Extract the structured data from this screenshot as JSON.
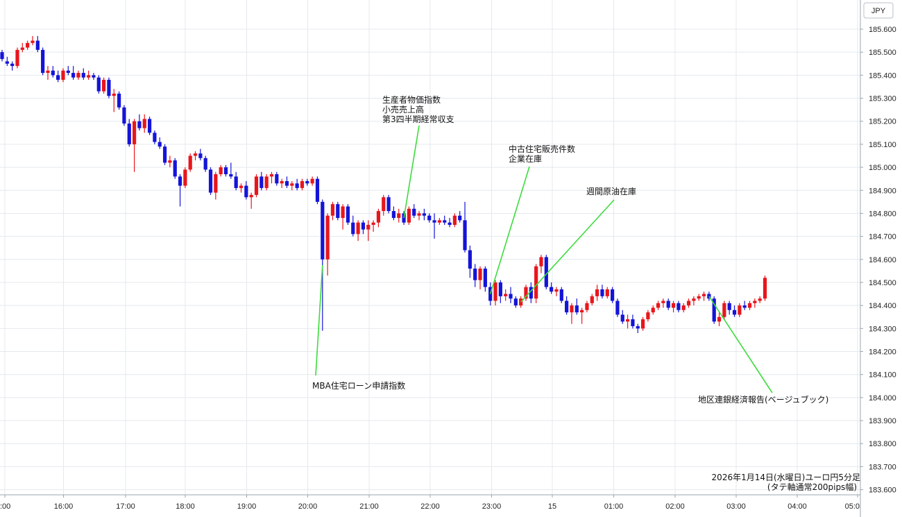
{
  "chart_data": {
    "type": "candlestick",
    "currency_label": "JPY",
    "caption": [
      "2026年1月14日(水曜日)ユーロ円5分足",
      "(タテ軸通常200pips幅)"
    ],
    "x_tick_labels": [
      ":00",
      "16:00",
      "17:00",
      "18:00",
      "19:00",
      "20:00",
      "21:00",
      "22:00",
      "23:00",
      "15",
      "01:00",
      "02:00",
      "03:00",
      "04:00",
      "05:0"
    ],
    "y_tick_labels": [
      "185.600",
      "185.500",
      "185.400",
      "185.300",
      "185.200",
      "185.100",
      "185.000",
      "184.900",
      "184.800",
      "184.700",
      "184.600",
      "184.500",
      "184.400",
      "184.300",
      "184.200",
      "184.100",
      "184.000",
      "183.900",
      "183.800",
      "183.700",
      "183.600"
    ],
    "y_range": [
      183.58,
      185.68
    ],
    "grid": true,
    "colors": {
      "up": "#e8161c",
      "down": "#1414d8",
      "grid": "#e4e9ee",
      "annotation_line": "#3cdc3c",
      "text": "#111111"
    },
    "annotations": [
      {
        "lines": [
          "MBA住宅ローン申請指数"
        ],
        "bar": 63
      },
      {
        "lines": [
          "生産者物価指数",
          "小売売上高",
          "第3四半期経常収支"
        ],
        "bar": 79
      },
      {
        "lines": [
          "中古住宅販売件数",
          "企業在庫"
        ],
        "bar": 96
      },
      {
        "lines": [
          "週間原油在庫"
        ],
        "bar": 102
      },
      {
        "lines": [
          "地区連銀経済報告(ベージュブック)"
        ],
        "bar": 139
      }
    ],
    "ohlc": [
      [
        185.5,
        185.51,
        185.46,
        185.47
      ],
      [
        185.46,
        185.48,
        185.44,
        185.45
      ],
      [
        185.45,
        185.46,
        185.42,
        185.44
      ],
      [
        185.44,
        185.52,
        185.43,
        185.51
      ],
      [
        185.51,
        185.54,
        185.5,
        185.52
      ],
      [
        185.52,
        185.55,
        185.51,
        185.54
      ],
      [
        185.54,
        185.57,
        185.53,
        185.55
      ],
      [
        185.55,
        185.57,
        185.5,
        185.51
      ],
      [
        185.51,
        185.52,
        185.4,
        185.41
      ],
      [
        185.41,
        185.44,
        185.38,
        185.42
      ],
      [
        185.42,
        185.44,
        185.39,
        185.4
      ],
      [
        185.4,
        185.42,
        185.37,
        185.38
      ],
      [
        185.38,
        185.43,
        185.37,
        185.42
      ],
      [
        185.42,
        185.44,
        185.4,
        185.41
      ],
      [
        185.41,
        185.44,
        185.38,
        185.39
      ],
      [
        185.39,
        185.42,
        185.38,
        185.41
      ],
      [
        185.41,
        185.43,
        185.38,
        185.39
      ],
      [
        185.39,
        185.42,
        185.38,
        185.4
      ],
      [
        185.4,
        185.41,
        185.38,
        185.39
      ],
      [
        185.39,
        185.4,
        185.32,
        185.33
      ],
      [
        185.33,
        185.39,
        185.32,
        185.38
      ],
      [
        185.38,
        185.39,
        185.3,
        185.31
      ],
      [
        185.31,
        185.34,
        185.24,
        185.32
      ],
      [
        185.32,
        185.33,
        185.25,
        185.26
      ],
      [
        185.26,
        185.27,
        185.18,
        185.19
      ],
      [
        185.19,
        185.21,
        185.09,
        185.1
      ],
      [
        185.1,
        185.21,
        184.98,
        185.2
      ],
      [
        185.2,
        185.23,
        185.16,
        185.17
      ],
      [
        185.17,
        185.23,
        185.15,
        185.21
      ],
      [
        185.21,
        185.22,
        185.14,
        185.15
      ],
      [
        185.15,
        185.16,
        185.1,
        185.11
      ],
      [
        185.11,
        185.13,
        185.08,
        185.09
      ],
      [
        185.09,
        185.1,
        185.01,
        185.02
      ],
      [
        185.02,
        185.05,
        185.0,
        185.03
      ],
      [
        185.03,
        185.04,
        184.95,
        184.96
      ],
      [
        184.96,
        184.97,
        184.83,
        184.92
      ],
      [
        184.92,
        185.0,
        184.91,
        184.99
      ],
      [
        184.99,
        185.06,
        184.98,
        185.05
      ],
      [
        185.05,
        185.07,
        185.03,
        185.06
      ],
      [
        185.06,
        185.08,
        185.03,
        185.04
      ],
      [
        185.04,
        185.05,
        184.98,
        184.99
      ],
      [
        184.99,
        185.0,
        184.88,
        184.89
      ],
      [
        184.89,
        184.98,
        184.86,
        184.97
      ],
      [
        184.97,
        185.01,
        184.96,
        185.0
      ],
      [
        185.0,
        185.01,
        184.96,
        184.97
      ],
      [
        184.97,
        185.02,
        184.95,
        184.96
      ],
      [
        184.96,
        184.98,
        184.9,
        184.91
      ],
      [
        184.91,
        184.93,
        184.89,
        184.92
      ],
      [
        184.92,
        184.94,
        184.86,
        184.87
      ],
      [
        184.87,
        184.89,
        184.82,
        184.88
      ],
      [
        184.88,
        184.97,
        184.87,
        184.96
      ],
      [
        184.96,
        184.98,
        184.9,
        184.91
      ],
      [
        184.91,
        184.97,
        184.9,
        184.96
      ],
      [
        184.96,
        184.98,
        184.93,
        184.97
      ],
      [
        184.97,
        184.98,
        184.92,
        184.93
      ],
      [
        184.93,
        184.95,
        184.91,
        184.94
      ],
      [
        184.94,
        184.96,
        184.91,
        184.92
      ],
      [
        184.92,
        184.94,
        184.9,
        184.93
      ],
      [
        184.93,
        184.95,
        184.9,
        184.91
      ],
      [
        184.91,
        184.95,
        184.9,
        184.94
      ],
      [
        184.94,
        184.95,
        184.92,
        184.93
      ],
      [
        184.93,
        184.96,
        184.92,
        184.95
      ],
      [
        184.95,
        184.96,
        184.84,
        184.85
      ],
      [
        184.85,
        184.86,
        184.29,
        184.6
      ],
      [
        184.6,
        184.8,
        184.53,
        184.79
      ],
      [
        184.79,
        184.85,
        184.77,
        184.84
      ],
      [
        184.84,
        184.85,
        184.77,
        184.78
      ],
      [
        184.78,
        184.84,
        184.73,
        184.83
      ],
      [
        184.83,
        184.84,
        184.75,
        184.76
      ],
      [
        184.76,
        184.79,
        184.7,
        184.71
      ],
      [
        184.71,
        184.77,
        184.68,
        184.76
      ],
      [
        184.76,
        184.77,
        184.71,
        184.73
      ],
      [
        184.73,
        184.77,
        184.68,
        184.75
      ],
      [
        184.75,
        184.77,
        184.72,
        184.76
      ],
      [
        184.76,
        184.82,
        184.74,
        184.81
      ],
      [
        184.81,
        184.88,
        184.79,
        184.87
      ],
      [
        184.87,
        184.88,
        184.8,
        184.81
      ],
      [
        184.81,
        184.83,
        184.77,
        184.78
      ],
      [
        184.78,
        184.82,
        184.76,
        184.8
      ],
      [
        184.8,
        184.81,
        184.75,
        184.76
      ],
      [
        184.76,
        184.83,
        184.75,
        184.82
      ],
      [
        184.82,
        184.84,
        184.78,
        184.79
      ],
      [
        184.79,
        184.81,
        184.77,
        184.8
      ],
      [
        184.8,
        184.82,
        184.77,
        184.79
      ],
      [
        184.79,
        184.8,
        184.76,
        184.77
      ],
      [
        184.77,
        184.8,
        184.69,
        184.76
      ],
      [
        184.76,
        184.78,
        184.75,
        184.77
      ],
      [
        184.77,
        184.79,
        184.75,
        184.76
      ],
      [
        184.76,
        184.78,
        184.74,
        184.75
      ],
      [
        184.75,
        184.8,
        184.74,
        184.79
      ],
      [
        184.79,
        184.81,
        184.76,
        184.77
      ],
      [
        184.77,
        184.85,
        184.63,
        184.64
      ],
      [
        184.64,
        184.66,
        184.52,
        184.56
      ],
      [
        184.56,
        184.58,
        184.48,
        184.51
      ],
      [
        184.51,
        184.57,
        184.47,
        184.56
      ],
      [
        184.56,
        184.57,
        184.46,
        184.48
      ],
      [
        184.48,
        184.5,
        184.4,
        184.42
      ],
      [
        184.42,
        184.51,
        184.4,
        184.5
      ],
      [
        184.5,
        184.51,
        184.41,
        184.44
      ],
      [
        184.44,
        184.47,
        184.42,
        184.45
      ],
      [
        184.45,
        184.48,
        184.41,
        184.43
      ],
      [
        184.43,
        184.44,
        184.39,
        184.4
      ],
      [
        184.4,
        184.44,
        184.39,
        184.43
      ],
      [
        184.43,
        184.49,
        184.42,
        184.48
      ],
      [
        184.48,
        184.5,
        184.41,
        184.43
      ],
      [
        184.43,
        184.58,
        184.41,
        184.57
      ],
      [
        184.57,
        184.62,
        184.54,
        184.61
      ],
      [
        184.61,
        184.62,
        184.47,
        184.48
      ],
      [
        184.48,
        184.5,
        184.45,
        184.46
      ],
      [
        184.46,
        184.48,
        184.44,
        184.47
      ],
      [
        184.47,
        184.48,
        184.41,
        184.42
      ],
      [
        184.42,
        184.44,
        184.36,
        184.37
      ],
      [
        184.37,
        184.41,
        184.32,
        184.4
      ],
      [
        184.4,
        184.43,
        184.36,
        184.37
      ],
      [
        184.37,
        184.39,
        184.32,
        184.38
      ],
      [
        184.38,
        184.42,
        184.37,
        184.41
      ],
      [
        184.41,
        184.45,
        184.4,
        184.44
      ],
      [
        184.44,
        184.49,
        184.42,
        184.47
      ],
      [
        184.47,
        184.49,
        184.43,
        184.44
      ],
      [
        184.44,
        184.48,
        184.43,
        184.47
      ],
      [
        184.47,
        184.48,
        184.41,
        184.42
      ],
      [
        184.42,
        184.43,
        184.35,
        184.36
      ],
      [
        184.36,
        184.38,
        184.32,
        184.33
      ],
      [
        184.33,
        184.36,
        184.3,
        184.34
      ],
      [
        184.34,
        184.36,
        184.3,
        184.31
      ],
      [
        184.31,
        184.32,
        184.28,
        184.3
      ],
      [
        184.3,
        184.35,
        184.29,
        184.34
      ],
      [
        184.34,
        184.38,
        184.33,
        184.37
      ],
      [
        184.37,
        184.4,
        184.36,
        184.39
      ],
      [
        184.39,
        184.42,
        184.38,
        184.41
      ],
      [
        184.41,
        184.43,
        184.39,
        184.42
      ],
      [
        184.42,
        184.43,
        184.38,
        184.39
      ],
      [
        184.39,
        184.42,
        184.37,
        184.41
      ],
      [
        184.41,
        184.42,
        184.37,
        184.38
      ],
      [
        184.38,
        184.41,
        184.37,
        184.4
      ],
      [
        184.4,
        184.43,
        184.39,
        184.42
      ],
      [
        184.42,
        184.44,
        184.4,
        184.43
      ],
      [
        184.43,
        184.45,
        184.42,
        184.44
      ],
      [
        184.44,
        184.46,
        184.42,
        184.45
      ],
      [
        184.45,
        184.46,
        184.42,
        184.43
      ],
      [
        184.43,
        184.44,
        184.32,
        184.33
      ],
      [
        184.33,
        184.37,
        184.31,
        184.35
      ],
      [
        184.35,
        184.42,
        184.34,
        184.41
      ],
      [
        184.41,
        184.42,
        184.36,
        184.38
      ],
      [
        184.38,
        184.4,
        184.35,
        184.36
      ],
      [
        184.36,
        184.41,
        184.35,
        184.4
      ],
      [
        184.4,
        184.42,
        184.38,
        184.39
      ],
      [
        184.39,
        184.42,
        184.38,
        184.41
      ],
      [
        184.41,
        184.43,
        184.39,
        184.42
      ],
      [
        184.42,
        184.44,
        184.41,
        184.43
      ],
      [
        184.43,
        184.53,
        184.42,
        184.52
      ]
    ]
  }
}
